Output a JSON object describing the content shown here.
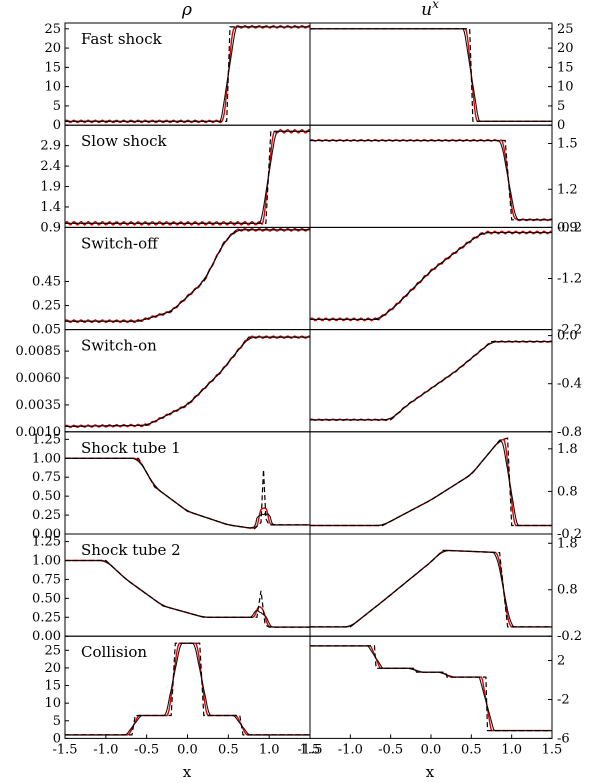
{
  "columns": [
    "ρ",
    "u"
  ],
  "column_superscript": "x",
  "xlabel": "x",
  "colors": {
    "reference": "#000000",
    "solution_a": "#111111",
    "solution_b": "#e00000"
  },
  "chart_data": {
    "type": "line",
    "xlim": [
      -1.5,
      1.5
    ],
    "xticks": [
      "-1.5",
      "-1.0",
      "-0.5",
      "0.0",
      "0.5",
      "1.0",
      "1.5"
    ],
    "series_styles": [
      "dashed black",
      "solid black",
      "solid red"
    ],
    "rows": [
      {
        "label": "Fast shock",
        "left": {
          "ylim": [
            0,
            26.5
          ],
          "yticks": [
            0,
            5,
            10,
            15,
            20,
            25
          ],
          "ytick_labels": [
            "0",
            "5",
            "10",
            "15",
            "20",
            "25"
          ],
          "profile": [
            [
              -1.5,
              1
            ],
            [
              0.48,
              1
            ],
            [
              0.52,
              25.5
            ],
            [
              1.5,
              25.5
            ]
          ],
          "wiggle": 0.6
        },
        "right": {
          "ylim": [
            0,
            26.5
          ],
          "yticks": [
            0,
            5,
            10,
            15,
            20,
            25
          ],
          "ytick_labels": [
            "0",
            "5",
            "10",
            "15",
            "20",
            "25"
          ],
          "profile": [
            [
              -1.5,
              25
            ],
            [
              0.48,
              25
            ],
            [
              0.52,
              1
            ],
            [
              1.5,
              1
            ]
          ],
          "wiggle": 0
        }
      },
      {
        "label": "Slow shock",
        "left": {
          "ylim": [
            0.9,
            3.4
          ],
          "yticks": [
            1.4,
            1.9,
            2.4,
            2.9
          ],
          "ytick_labels": [
            "1.4",
            "1.9",
            "2.4",
            "2.9"
          ],
          "profile": [
            [
              -1.5,
              1.0
            ],
            [
              0.96,
              1.0
            ],
            [
              1.02,
              3.25
            ],
            [
              1.5,
              3.25
            ]
          ],
          "wiggle": 0.08
        },
        "right": {
          "ylim": [
            0.95,
            1.62
          ],
          "yticks": [
            1.2,
            1.5
          ],
          "ytick_labels": [
            "1.2",
            "1.5"
          ],
          "extra_tick_labels": [
            "0.9"
          ],
          "profile": [
            [
              -1.5,
              1.52
            ],
            [
              0.92,
              1.52
            ],
            [
              1.0,
              1.0
            ],
            [
              1.5,
              1.0
            ]
          ],
          "wiggle": 0.01
        }
      },
      {
        "label": "Switch-off",
        "left": {
          "ylim": [
            0.05,
            0.9
          ],
          "yticks": [
            0.05,
            0.25,
            0.45,
            0.9
          ],
          "ytick_labels": [
            "0.05",
            "0.25",
            "0.45",
            "0.9"
          ],
          "profile": [
            [
              -1.5,
              0.12
            ],
            [
              -0.6,
              0.12
            ],
            [
              -0.2,
              0.2
            ],
            [
              0.2,
              0.45
            ],
            [
              0.45,
              0.78
            ],
            [
              0.6,
              0.88
            ],
            [
              1.5,
              0.88
            ]
          ],
          "wiggle": 0.02
        },
        "right": {
          "ylim": [
            -2.2,
            -0.2
          ],
          "yticks": [
            -1.2,
            -0.2
          ],
          "ytick_labels": [
            "-1.2",
            "-0.2"
          ],
          "extra_tick_labels": [
            "-2.2"
          ],
          "profile": [
            [
              -1.5,
              -2.0
            ],
            [
              -0.65,
              -2.0
            ],
            [
              -0.45,
              -1.75
            ],
            [
              0.0,
              -1.05
            ],
            [
              0.5,
              -0.45
            ],
            [
              0.65,
              -0.3
            ],
            [
              1.5,
              -0.3
            ]
          ],
          "wiggle": 0.05
        }
      },
      {
        "label": "Switch-on",
        "left": {
          "ylim": [
            0.001,
            0.0105
          ],
          "yticks": [
            0.001,
            0.0035,
            0.006,
            0.0085
          ],
          "ytick_labels": [
            "0.0010",
            "0.0035",
            "0.0060",
            "0.0085"
          ],
          "profile": [
            [
              -1.5,
              0.0015
            ],
            [
              -0.5,
              0.0016
            ],
            [
              0.0,
              0.0035
            ],
            [
              0.4,
              0.0065
            ],
            [
              0.75,
              0.0098
            ],
            [
              1.5,
              0.0098
            ]
          ],
          "wiggle": 0.0002
        },
        "right": {
          "ylim": [
            -0.8,
            0.05
          ],
          "yticks": [
            -0.8,
            -0.4,
            0.0
          ],
          "ytick_labels": [
            "-0.8",
            "-0.4",
            "0.0"
          ],
          "profile": [
            [
              -1.5,
              -0.7
            ],
            [
              -0.5,
              -0.7
            ],
            [
              -0.3,
              -0.58
            ],
            [
              0.3,
              -0.3
            ],
            [
              0.75,
              -0.05
            ],
            [
              1.5,
              -0.05
            ]
          ],
          "wiggle": 0.01
        }
      },
      {
        "label": "Shock tube 1",
        "left": {
          "ylim": [
            0,
            1.35
          ],
          "yticks": [
            0,
            0.25,
            0.5,
            0.75,
            1.0,
            1.25
          ],
          "ytick_labels": [
            "0.00",
            "0.25",
            "0.50",
            "0.75",
            "1.00",
            "1.25"
          ],
          "profile": [
            [
              -1.5,
              1.0
            ],
            [
              -0.6,
              1.0
            ],
            [
              -0.4,
              0.62
            ],
            [
              0.0,
              0.3
            ],
            [
              0.5,
              0.12
            ],
            [
              0.82,
              0.07
            ],
            [
              0.9,
              0.15
            ],
            [
              0.93,
              0.85
            ],
            [
              0.96,
              0.2
            ],
            [
              1.0,
              0.12
            ],
            [
              1.5,
              0.12
            ]
          ],
          "wiggle": 0
        },
        "right": {
          "ylim": [
            -0.2,
            2.2
          ],
          "yticks": [
            -0.2,
            0.8,
            1.8
          ],
          "ytick_labels": [
            "-0.2",
            "0.8",
            "1.8"
          ],
          "profile": [
            [
              -1.5,
              0.0
            ],
            [
              -0.6,
              0.0
            ],
            [
              0.0,
              0.6
            ],
            [
              0.5,
              1.2
            ],
            [
              0.85,
              2.0
            ],
            [
              0.95,
              2.05
            ],
            [
              1.0,
              0.0
            ],
            [
              1.5,
              0.0
            ]
          ],
          "wiggle": 0
        }
      },
      {
        "label": "Shock tube 2",
        "left": {
          "ylim": [
            0,
            1.35
          ],
          "yticks": [
            0,
            0.25,
            0.5,
            0.75,
            1.0,
            1.25
          ],
          "ytick_labels": [
            "0.00",
            "0.25",
            "0.50",
            "0.75",
            "1.00",
            "1.25"
          ],
          "profile": [
            [
              -1.5,
              1.0
            ],
            [
              -1.0,
              1.0
            ],
            [
              -0.75,
              0.75
            ],
            [
              -0.3,
              0.4
            ],
            [
              0.2,
              0.25
            ],
            [
              0.85,
              0.25
            ],
            [
              0.9,
              0.6
            ],
            [
              0.95,
              0.15
            ],
            [
              1.0,
              0.12
            ],
            [
              1.5,
              0.12
            ]
          ],
          "wiggle": 0
        },
        "right": {
          "ylim": [
            -0.2,
            2.0
          ],
          "yticks": [
            -0.2,
            0.8,
            1.8
          ],
          "ytick_labels": [
            "-0.2",
            "0.8",
            "1.8"
          ],
          "profile": [
            [
              -1.5,
              0.0
            ],
            [
              -1.0,
              0.0
            ],
            [
              -0.6,
              0.55
            ],
            [
              0.0,
              1.4
            ],
            [
              0.15,
              1.65
            ],
            [
              0.85,
              1.6
            ],
            [
              0.95,
              0.0
            ],
            [
              1.5,
              0.0
            ]
          ],
          "wiggle": 0
        }
      },
      {
        "label": "Collision",
        "left": {
          "ylim": [
            0,
            29
          ],
          "yticks": [
            0,
            5,
            10,
            15,
            20,
            25
          ],
          "ytick_labels": [
            "0",
            "5",
            "10",
            "15",
            "20",
            "25"
          ],
          "profile": [
            [
              -1.5,
              1
            ],
            [
              -0.68,
              1
            ],
            [
              -0.64,
              6.5
            ],
            [
              -0.2,
              6.5
            ],
            [
              -0.15,
              27
            ],
            [
              0.15,
              27
            ],
            [
              0.2,
              6.5
            ],
            [
              0.64,
              6.5
            ],
            [
              0.68,
              1
            ],
            [
              1.5,
              1
            ]
          ],
          "wiggle": 0
        },
        "right": {
          "ylim": [
            -6,
            4.5
          ],
          "yticks": [
            -6,
            -2,
            2
          ],
          "ytick_labels": [
            "-6",
            "-2",
            "2"
          ],
          "profile": [
            [
              -1.5,
              3.5
            ],
            [
              -0.7,
              3.5
            ],
            [
              -0.68,
              1.2
            ],
            [
              -0.2,
              1.2
            ],
            [
              -0.18,
              0.8
            ],
            [
              0.18,
              0.8
            ],
            [
              0.2,
              0.3
            ],
            [
              0.68,
              0.3
            ],
            [
              0.7,
              -5.2
            ],
            [
              1.5,
              -5.2
            ]
          ],
          "wiggle": 0
        }
      }
    ]
  }
}
